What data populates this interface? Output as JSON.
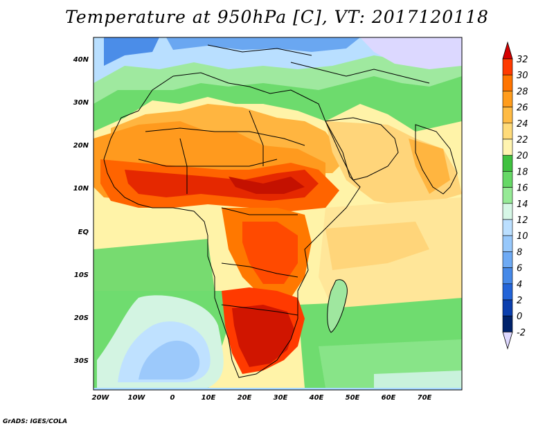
{
  "title": "Temperature at 950hPa [C], VT: 2017120118",
  "credit": "GrADS: IGES/COLA",
  "lat_labels": [
    "40N",
    "30N",
    "20N",
    "10N",
    "EQ",
    "10S",
    "20S",
    "30S"
  ],
  "lon_labels": [
    "20W",
    "10W",
    "0",
    "10E",
    "20E",
    "30E",
    "40E",
    "50E",
    "60E",
    "70E"
  ],
  "colorbar": {
    "levels": [
      "32",
      "30",
      "28",
      "26",
      "24",
      "22",
      "20",
      "18",
      "16",
      "14",
      "12",
      "10",
      "8",
      "6",
      "4",
      "2",
      "0",
      "-2"
    ],
    "colors": [
      "#d50000",
      "#ff3a00",
      "#ff7400",
      "#ff9c1c",
      "#ffbb44",
      "#ffdb7a",
      "#fff4b0",
      "#3fc13f",
      "#66d866",
      "#96ea96",
      "#d6f7e6",
      "#bbdfff",
      "#97c8fb",
      "#6eaaf4",
      "#4689e8",
      "#2364d8",
      "#0b3fae",
      "#00226b",
      "#ded8ff"
    ]
  },
  "legend_ticks_note": "",
  "zones": {
    "ocean_cool": "#9bd2ff",
    "ocean_mild": "#6ddb6d",
    "ocean_warm": "#fff1a8",
    "land_hot": "#ff6a00",
    "land_hottest": "#d61a00",
    "land_warm": "#ffb542",
    "land_mild": "#ffd97a"
  }
}
